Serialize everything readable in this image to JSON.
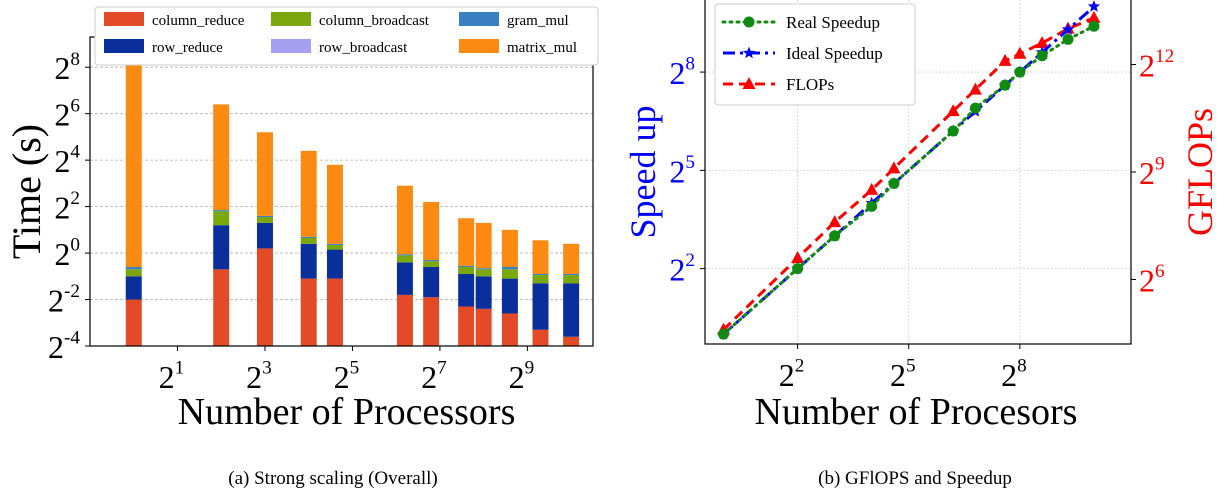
{
  "chart_data": [
    {
      "type": "bar",
      "stacked": true,
      "log_scale": {
        "x": 2,
        "y": 2
      },
      "ylabel": "Time (s)",
      "xlabel": "Number of Processors",
      "caption": "(a) Strong scaling (Overall)",
      "x_ticks": [
        {
          "base": "2",
          "exp": "1",
          "v": 1
        },
        {
          "base": "2",
          "exp": "3",
          "v": 3
        },
        {
          "base": "2",
          "exp": "5",
          "v": 5
        },
        {
          "base": "2",
          "exp": "7",
          "v": 7
        },
        {
          "base": "2",
          "exp": "9",
          "v": 9
        }
      ],
      "y_ticks": [
        {
          "base": "2",
          "exp": "-4",
          "v": -4
        },
        {
          "base": "2",
          "exp": "-2",
          "v": -2
        },
        {
          "base": "2",
          "exp": "0",
          "v": 0
        },
        {
          "base": "2",
          "exp": "2",
          "v": 2
        },
        {
          "base": "2",
          "exp": "4",
          "v": 4
        },
        {
          "base": "2",
          "exp": "6",
          "v": 6
        },
        {
          "base": "2",
          "exp": "8",
          "v": 8
        }
      ],
      "xlim_log2": [
        -1.0,
        10.5
      ],
      "ylim_log2": [
        -4,
        9.3
      ],
      "grid": "y-dashed",
      "legend": {
        "placement": "top",
        "entries": [
          {
            "name": "column_reduce",
            "color": "#e34a27"
          },
          {
            "name": "column_broadcast",
            "color": "#7aa80c"
          },
          {
            "name": "gram_mul",
            "color": "#3a7fc1"
          },
          {
            "name": "row_reduce",
            "color": "#0b2f9a"
          },
          {
            "name": "row_broadcast",
            "color": "#a49ff0"
          },
          {
            "name": "matrix_mul",
            "color": "#fb8a12"
          }
        ]
      },
      "series_order": [
        "column_reduce",
        "row_reduce",
        "row_broadcast",
        "column_broadcast",
        "gram_mul",
        "matrix_mul"
      ],
      "bars_log2_cumulative": [
        {
          "x": 0,
          "column_reduce": -2.0,
          "row_reduce": -1.0,
          "row_broadcast": -1.0,
          "column_broadcast": -0.7,
          "gram_mul": -0.6,
          "matrix_mul": 8.6
        },
        {
          "x": 2,
          "column_reduce": -0.7,
          "row_reduce": 1.2,
          "row_broadcast": 1.2,
          "column_broadcast": 1.8,
          "gram_mul": 1.85,
          "matrix_mul": 6.4
        },
        {
          "x": 3,
          "column_reduce": 0.2,
          "row_reduce": 1.3,
          "row_broadcast": 1.3,
          "column_broadcast": 1.55,
          "gram_mul": 1.6,
          "matrix_mul": 5.2
        },
        {
          "x": 4,
          "column_reduce": -1.1,
          "row_reduce": 0.4,
          "row_broadcast": 0.4,
          "column_broadcast": 0.65,
          "gram_mul": 0.7,
          "matrix_mul": 4.4
        },
        {
          "x": 4.6,
          "column_reduce": -1.1,
          "row_reduce": 0.15,
          "row_broadcast": 0.15,
          "column_broadcast": 0.35,
          "gram_mul": 0.4,
          "matrix_mul": 3.8
        },
        {
          "x": 6.2,
          "column_reduce": -1.8,
          "row_reduce": -0.4,
          "row_broadcast": -0.4,
          "column_broadcast": -0.1,
          "gram_mul": -0.05,
          "matrix_mul": 2.9
        },
        {
          "x": 6.8,
          "column_reduce": -1.9,
          "row_reduce": -0.6,
          "row_broadcast": -0.6,
          "column_broadcast": -0.35,
          "gram_mul": -0.3,
          "matrix_mul": 2.2
        },
        {
          "x": 7.6,
          "column_reduce": -2.3,
          "row_reduce": -0.9,
          "row_broadcast": -0.9,
          "column_broadcast": -0.6,
          "gram_mul": -0.55,
          "matrix_mul": 1.5
        },
        {
          "x": 8.0,
          "column_reduce": -2.4,
          "row_reduce": -1.0,
          "row_broadcast": -1.0,
          "column_broadcast": -0.7,
          "gram_mul": -0.65,
          "matrix_mul": 1.3
        },
        {
          "x": 8.6,
          "column_reduce": -2.6,
          "row_reduce": -1.1,
          "row_broadcast": -1.1,
          "column_broadcast": -0.7,
          "gram_mul": -0.6,
          "matrix_mul": 1.0
        },
        {
          "x": 9.3,
          "column_reduce": -3.3,
          "row_reduce": -1.3,
          "row_broadcast": -1.3,
          "column_broadcast": -0.95,
          "gram_mul": -0.9,
          "matrix_mul": 0.55
        },
        {
          "x": 10.0,
          "column_reduce": -3.6,
          "row_reduce": -1.3,
          "row_broadcast": -1.3,
          "column_broadcast": -0.95,
          "gram_mul": -0.9,
          "matrix_mul": 0.4
        }
      ]
    },
    {
      "type": "line",
      "log_scale": {
        "x": 2,
        "y_left": 2,
        "y_right": 2
      },
      "xlabel": "Number of Procesors",
      "ylabel": "Speed up",
      "ylabel_right": "GFLOPs",
      "caption": "(b) GFlOPS and Speedup",
      "x_ticks": [
        {
          "base": "2",
          "exp": "2",
          "v": 2
        },
        {
          "base": "2",
          "exp": "5",
          "v": 5
        },
        {
          "base": "2",
          "exp": "8",
          "v": 8
        }
      ],
      "y_ticks_left": [
        {
          "base": "2",
          "exp": "2",
          "v": 2
        },
        {
          "base": "2",
          "exp": "5",
          "v": 5
        },
        {
          "base": "2",
          "exp": "8",
          "v": 8
        }
      ],
      "y_ticks_right": [
        {
          "base": "2",
          "exp": "6",
          "v": 6
        },
        {
          "base": "2",
          "exp": "9",
          "v": 9
        },
        {
          "base": "2",
          "exp": "12",
          "v": 12
        }
      ],
      "xlim_log2": [
        -0.5,
        11.0
      ],
      "ylim_left_log2": [
        -0.3,
        10.2
      ],
      "ylim_right_log2": [
        4.2,
        13.8
      ],
      "grid": "dotted",
      "left_axis_color": "#0000ff",
      "right_axis_color": "#ff0000",
      "legend": {
        "placement": "top-left",
        "entries": [
          {
            "name": "Real Speedup",
            "color": "#118a11",
            "style": "dotted",
            "marker": "circle"
          },
          {
            "name": "Ideal Speedup",
            "color": "#0000ff",
            "style": "dashdot",
            "marker": "star"
          },
          {
            "name": "FLOPs",
            "color": "#ff0000",
            "style": "dashed",
            "marker": "triangle"
          }
        ]
      },
      "series": [
        {
          "name": "Real Speedup",
          "axis": "left",
          "x": [
            0,
            2,
            3,
            4,
            4.6,
            6.2,
            6.8,
            7.6,
            8.0,
            8.6,
            9.3,
            10.0
          ],
          "y": [
            0,
            2.0,
            3.0,
            3.9,
            4.6,
            6.2,
            6.9,
            7.6,
            8.0,
            8.5,
            9.0,
            9.4
          ]
        },
        {
          "name": "Ideal Speedup",
          "axis": "left",
          "x": [
            0,
            2,
            3,
            4,
            4.6,
            6.2,
            6.8,
            7.6,
            8.0,
            8.6,
            9.3,
            10.0
          ],
          "y": [
            0,
            2,
            3,
            4,
            4.6,
            6.2,
            6.8,
            7.6,
            8.0,
            8.6,
            9.3,
            10.0
          ]
        },
        {
          "name": "FLOPs",
          "axis": "right",
          "x": [
            0,
            2,
            3,
            4,
            4.6,
            6.2,
            6.8,
            7.6,
            8.0,
            8.6,
            9.3,
            10.0
          ],
          "y": [
            4.6,
            6.6,
            7.6,
            8.5,
            9.1,
            10.7,
            11.3,
            12.1,
            12.3,
            12.6,
            13.0,
            13.3
          ]
        }
      ]
    }
  ]
}
